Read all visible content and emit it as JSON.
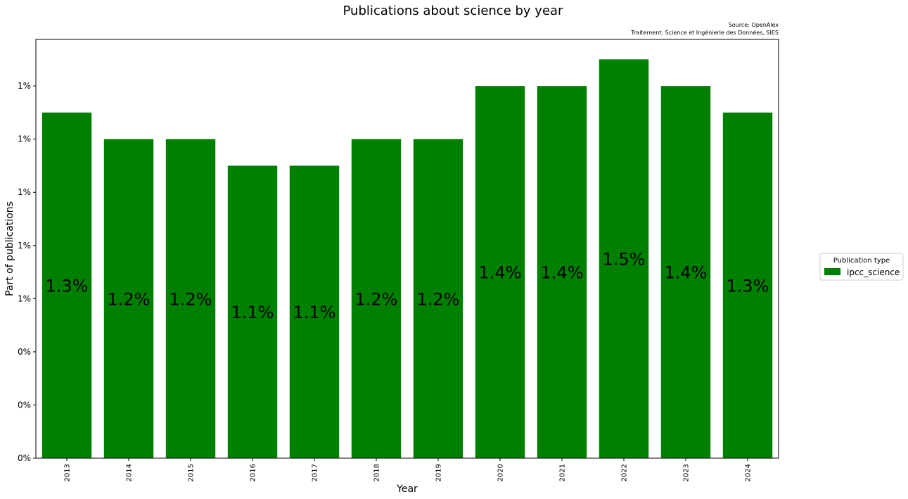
{
  "chart_data": {
    "type": "bar",
    "title": "Publications about science by year",
    "source_lines": [
      "Source: OpenAlex",
      "Traitement: Science et Ingénierie des Données, SIES"
    ],
    "xlabel": "Year",
    "ylabel": "Part of publications",
    "categories": [
      "2013",
      "2014",
      "2015",
      "2016",
      "2017",
      "2018",
      "2019",
      "2020",
      "2021",
      "2022",
      "2023",
      "2024"
    ],
    "series": [
      {
        "name": "ipcc_science",
        "color": "#008000",
        "values": [
          1.3,
          1.2,
          1.2,
          1.1,
          1.1,
          1.2,
          1.2,
          1.4,
          1.4,
          1.5,
          1.4,
          1.3
        ],
        "labels": [
          "1.3%",
          "1.2%",
          "1.2%",
          "1.1%",
          "1.1%",
          "1.2%",
          "1.2%",
          "1.4%",
          "1.4%",
          "1.5%",
          "1.4%",
          "1.3%"
        ]
      }
    ],
    "ylim": [
      0,
      1.575
    ],
    "yticks": [
      0,
      0.2,
      0.4,
      0.6,
      0.8,
      1.0,
      1.2,
      1.4
    ],
    "ytick_labels": [
      "0%",
      "0%",
      "0%",
      "1%",
      "1%",
      "1%",
      "1%",
      "1%"
    ],
    "grid": false,
    "legend": {
      "title": "Publication type",
      "placement": "right"
    }
  }
}
